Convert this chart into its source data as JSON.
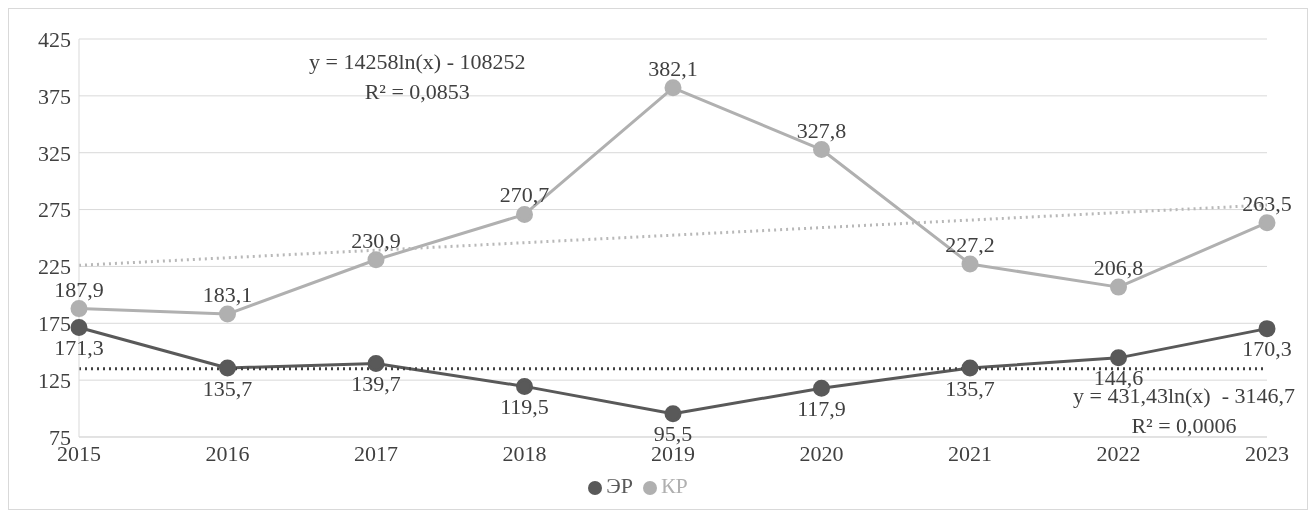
{
  "chart_data": {
    "type": "line",
    "categories": [
      "2015",
      "2016",
      "2017",
      "2018",
      "2019",
      "2020",
      "2021",
      "2022",
      "2023"
    ],
    "series": [
      {
        "name": "ЭР",
        "color": "#595959",
        "values": [
          171.3,
          135.7,
          139.7,
          119.5,
          95.5,
          117.9,
          135.7,
          144.6,
          170.3
        ],
        "value_labels": [
          "171,3",
          "135,7",
          "139,7",
          "119,5",
          "95,5",
          "117,9",
          "135,7",
          "144,6",
          "170,3"
        ]
      },
      {
        "name": "КР",
        "color": "#b0b0b0",
        "values": [
          187.9,
          183.1,
          230.9,
          270.7,
          382.1,
          327.8,
          227.2,
          206.8,
          263.5
        ],
        "value_labels": [
          "187,9",
          "183,1",
          "230,9",
          "270,7",
          "382,1",
          "327,8",
          "227,2",
          "206,8",
          "263,5"
        ]
      },
      {
        "type": "line",
        "color": "#b8b8b8",
        "values": [
          226,
          null,
          null,
          null,
          null,
          null,
          null,
          null,
          279
        ],
        "marker": "none",
        "line_style": "dotted"
      },
      {
        "type": "line",
        "color": "#404040",
        "values": [
          135,
          null,
          null,
          null,
          null,
          null,
          null,
          null,
          135
        ],
        "marker": "none",
        "line_style": "dotted"
      }
    ],
    "ylim": [
      75,
      425
    ],
    "yticks": [
      75,
      125,
      175,
      225,
      275,
      325,
      375,
      425
    ],
    "grid": "y",
    "legend": "bottom",
    "marker": "circle",
    "line_style": "solid",
    "annotations": [
      "y = 14258ln(x) - 108252\nR² = 0,0853",
      "y = 431,43ln(x)  - 3146,7\nR² = 0,0006"
    ]
  }
}
